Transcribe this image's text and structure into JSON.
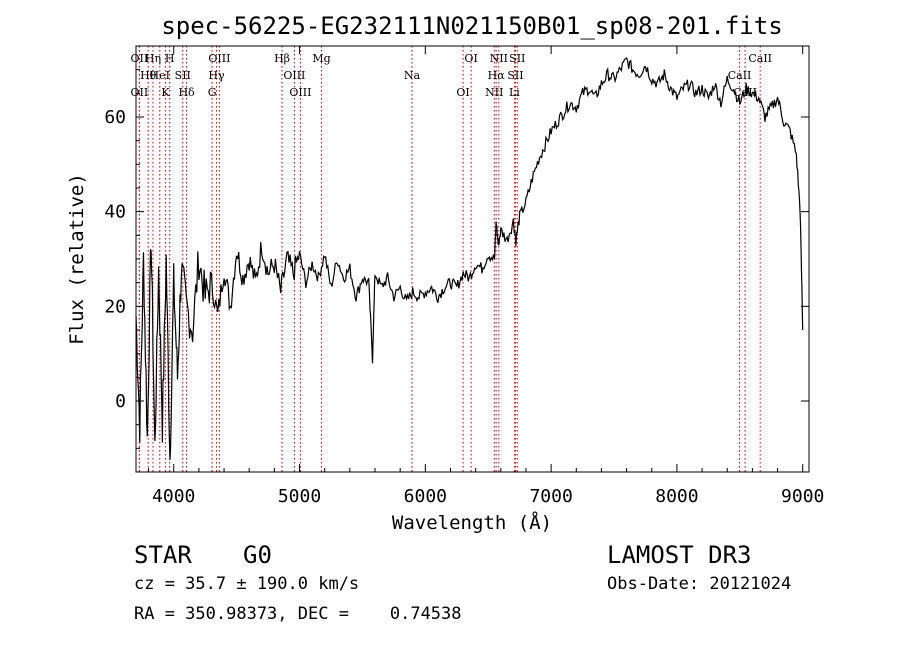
{
  "chart_data": {
    "type": "line",
    "title": "spec-56225-EG232111N021150B01_sp08-201.fits",
    "xlabel": "Wavelength (Å)",
    "ylabel": "Flux (relative)",
    "xlim": [
      3700,
      9050
    ],
    "ylim": [
      -15,
      75
    ],
    "xticks": [
      4000,
      5000,
      6000,
      7000,
      8000,
      9000
    ],
    "yticks": [
      0,
      20,
      40,
      60
    ],
    "grid": false,
    "series": [
      {
        "name": "flux",
        "x": [
          3700,
          3730,
          3760,
          3790,
          3820,
          3850,
          3880,
          3910,
          3940,
          3970,
          4000,
          4030,
          4060,
          4100,
          4150,
          4200,
          4250,
          4300,
          4350,
          4400,
          4450,
          4500,
          4550,
          4600,
          4650,
          4700,
          4750,
          4800,
          4850,
          4900,
          4950,
          5000,
          5050,
          5100,
          5150,
          5200,
          5250,
          5300,
          5350,
          5400,
          5450,
          5500,
          5550,
          5580,
          5600,
          5650,
          5700,
          5750,
          5800,
          5850,
          5900,
          5950,
          6000,
          6050,
          6100,
          6150,
          6200,
          6250,
          6300,
          6350,
          6400,
          6450,
          6500,
          6550,
          6563,
          6580,
          6600,
          6650,
          6700,
          6720,
          6750,
          6800,
          6850,
          6900,
          6950,
          7000,
          7050,
          7100,
          7150,
          7200,
          7250,
          7300,
          7350,
          7400,
          7450,
          7500,
          7550,
          7600,
          7650,
          7700,
          7750,
          7800,
          7850,
          7900,
          7950,
          8000,
          8050,
          8100,
          8150,
          8200,
          8250,
          8300,
          8350,
          8400,
          8450,
          8500,
          8550,
          8600,
          8650,
          8700,
          8750,
          8800,
          8850,
          8900,
          8950,
          8980,
          9000
        ],
        "values": [
          18,
          -5,
          30,
          -8,
          35,
          -10,
          28,
          -5,
          30,
          -12,
          25,
          5,
          28,
          20,
          15,
          30,
          22,
          25,
          18,
          28,
          20,
          32,
          26,
          30,
          25,
          33,
          27,
          29,
          23,
          30,
          27,
          31,
          25,
          29,
          26,
          31,
          24,
          30,
          26,
          28,
          22,
          26,
          25,
          9,
          27,
          24,
          26,
          22,
          24,
          21,
          23,
          22,
          23,
          24,
          22,
          24,
          25,
          24,
          27,
          26,
          29,
          28,
          31,
          30,
          38,
          33,
          36,
          34,
          38,
          34,
          39,
          42,
          47,
          51,
          54,
          57,
          59,
          61,
          63,
          62,
          65,
          66,
          64,
          67,
          69,
          68,
          70,
          72,
          70,
          69,
          71,
          68,
          67,
          69,
          66,
          64,
          66,
          67,
          65,
          66,
          64,
          67,
          63,
          68,
          66,
          63,
          66,
          65,
          64,
          60,
          62,
          64,
          59,
          57,
          52,
          40,
          15
        ]
      }
    ],
    "line_markers": [
      {
        "label": "OII",
        "x": 3727
      },
      {
        "label": "Hθ",
        "x": 3797
      },
      {
        "label": "OII",
        "x": 3727
      },
      {
        "label": "Hη",
        "x": 3835
      },
      {
        "label": "HeI",
        "x": 3889
      },
      {
        "label": "K",
        "x": 3934
      },
      {
        "label": "H",
        "x": 3968
      },
      {
        "label": "SII",
        "x": 4072
      },
      {
        "label": "Hδ",
        "x": 4102
      },
      {
        "label": "OIII",
        "x": 4363
      },
      {
        "label": "Hγ",
        "x": 4340
      },
      {
        "label": "G",
        "x": 4305
      },
      {
        "label": "Hβ",
        "x": 4861
      },
      {
        "label": "OIII",
        "x": 4959
      },
      {
        "label": "OIII",
        "x": 5007
      },
      {
        "label": "Mg",
        "x": 5175
      },
      {
        "label": "Na",
        "x": 5894
      },
      {
        "label": "OI",
        "x": 6300
      },
      {
        "label": "OI",
        "x": 6364
      },
      {
        "label": "Hα",
        "x": 6563
      },
      {
        "label": "NII",
        "x": 6548
      },
      {
        "label": "NII",
        "x": 6584
      },
      {
        "label": "SII",
        "x": 6717
      },
      {
        "label": "Li",
        "x": 6708
      },
      {
        "label": "SII",
        "x": 6731
      },
      {
        "label": "CaII",
        "x": 8498
      },
      {
        "label": "CaII",
        "x": 8542
      },
      {
        "label": "CaII",
        "x": 8662
      }
    ]
  },
  "info": {
    "class": "STAR",
    "subclass": "G0",
    "survey": "LAMOST DR3",
    "redshift_line": "cz = 35.7 ± 190.0 km/s",
    "obs_date_line": "Obs-Date: 20121024",
    "coord_line": "RA = 350.98373, DEC =    0.74538"
  }
}
